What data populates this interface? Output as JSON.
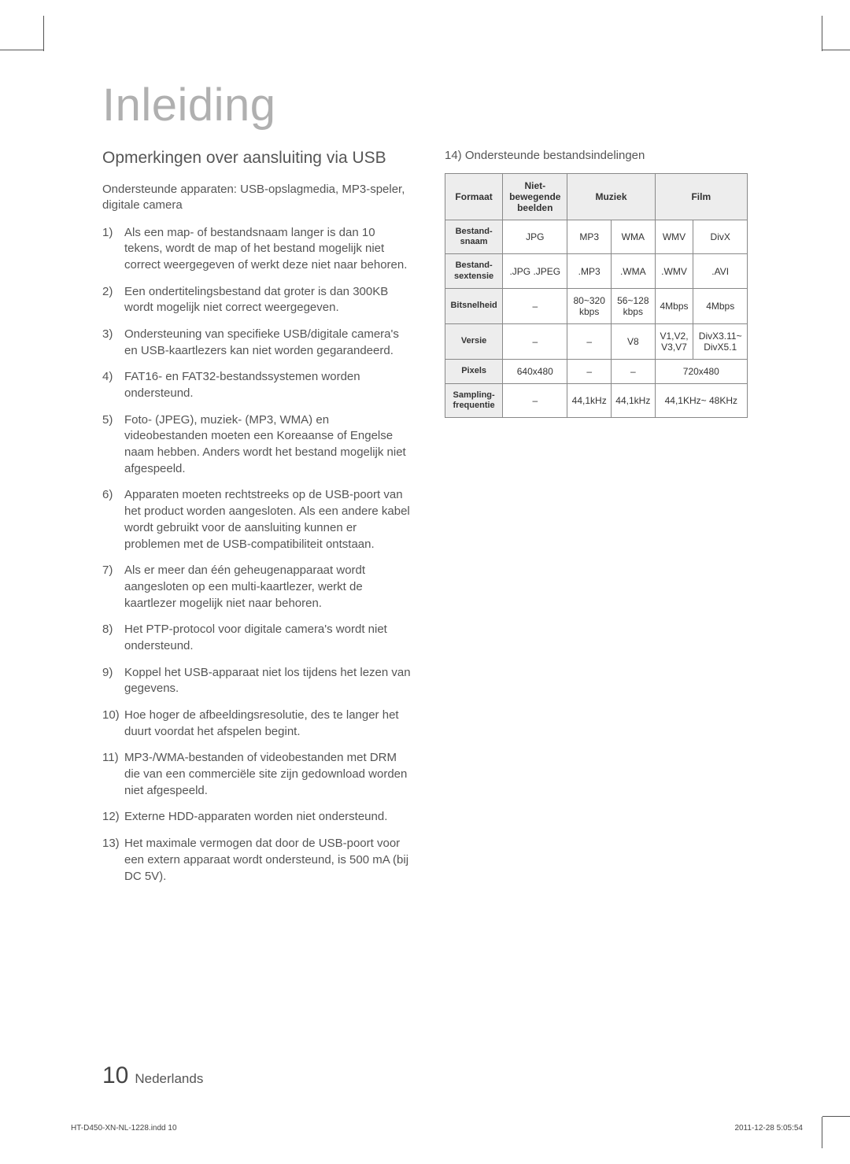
{
  "page": {
    "title": "Inleiding",
    "subtitle": "Opmerkingen over aansluiting via USB",
    "intro": "Ondersteunde apparaten: USB-opslagmedia, MP3-speler, digitale camera",
    "items": [
      "Als een map- of bestandsnaam langer is dan 10 tekens, wordt de map of het bestand mogelijk niet correct weergegeven of werkt deze niet naar behoren.",
      "Een ondertitelingsbestand dat groter is dan 300KB wordt mogelijk niet correct weergegeven.",
      "Ondersteuning van specifieke USB/digitale camera's en USB-kaartlezers kan niet worden gegarandeerd.",
      "FAT16- en FAT32-bestandssystemen worden ondersteund.",
      "Foto- (JPEG), muziek- (MP3, WMA) en videobestanden moeten een Koreaanse of Engelse naam hebben. Anders wordt het bestand mogelijk niet afgespeeld.",
      "Apparaten moeten rechtstreeks op de USB-poort van het product worden aangesloten. Als een andere kabel wordt gebruikt voor de aansluiting kunnen er problemen met de USB-compatibiliteit ontstaan.",
      "Als er meer dan één geheugenapparaat wordt aangesloten op een multi-kaartlezer, werkt de kaartlezer mogelijk niet naar behoren.",
      "Het PTP-protocol voor digitale camera's wordt niet ondersteund.",
      "Koppel het USB-apparaat niet los tijdens het lezen van gegevens.",
      "Hoe hoger de afbeeldingsresolutie, des te langer het duurt voordat het afspelen begint.",
      "MP3-/WMA-bestanden of videobestanden met DRM die van een commerciële site zijn gedownload worden niet afgespeeld.",
      "Externe HDD-apparaten worden niet ondersteund.",
      "Het maximale vermogen dat door de USB-poort voor een extern apparaat wordt ondersteund, is 500 mA (bij DC 5V)."
    ],
    "right_label": "14) Ondersteunde bestandsindelingen",
    "page_number": "10",
    "language": "Nederlands",
    "indd": "HT-D450-XN-NL-1228.indd   10",
    "timestamp": "2011-12-28   5:05:54"
  },
  "table": {
    "header_bg": "#ededed",
    "border_color": "#888888",
    "text_color": "#333333",
    "columns": [
      "Formaat",
      "Niet-bewegende beelden",
      "Muziek",
      "Film"
    ],
    "header_spans": [
      1,
      1,
      2,
      2
    ],
    "row_headers": [
      "Bestand-snaam",
      "Bestand-sextensie",
      "Bitsnelheid",
      "Versie",
      "Pixels",
      "Sampling-frequentie"
    ],
    "rows": {
      "bestandsnaam": {
        "c1": "JPG",
        "c2": "MP3",
        "c3": "WMA",
        "c4": "WMV",
        "c5": "DivX"
      },
      "bestandsext": {
        "c1": ".JPG .JPEG",
        "c2": ".MP3",
        "c3": ".WMA",
        "c4": ".WMV",
        "c5": ".AVI"
      },
      "bitsnelheid": {
        "c1": "–",
        "c2": "80~320 kbps",
        "c3": "56~128 kbps",
        "c4": "4Mbps",
        "c5": "4Mbps"
      },
      "versie": {
        "c1": "–",
        "c2": "–",
        "c3": "V8",
        "c4": "V1,V2, V3,V7",
        "c5": "DivX3.11~ DivX5.1"
      },
      "pixels": {
        "c1": "640x480",
        "c2": "–",
        "c3": "–",
        "c45": "720x480"
      },
      "sampling": {
        "c1": "–",
        "c2": "44,1kHz",
        "c3": "44,1kHz",
        "c45": "44,1KHz~ 48KHz"
      }
    }
  }
}
